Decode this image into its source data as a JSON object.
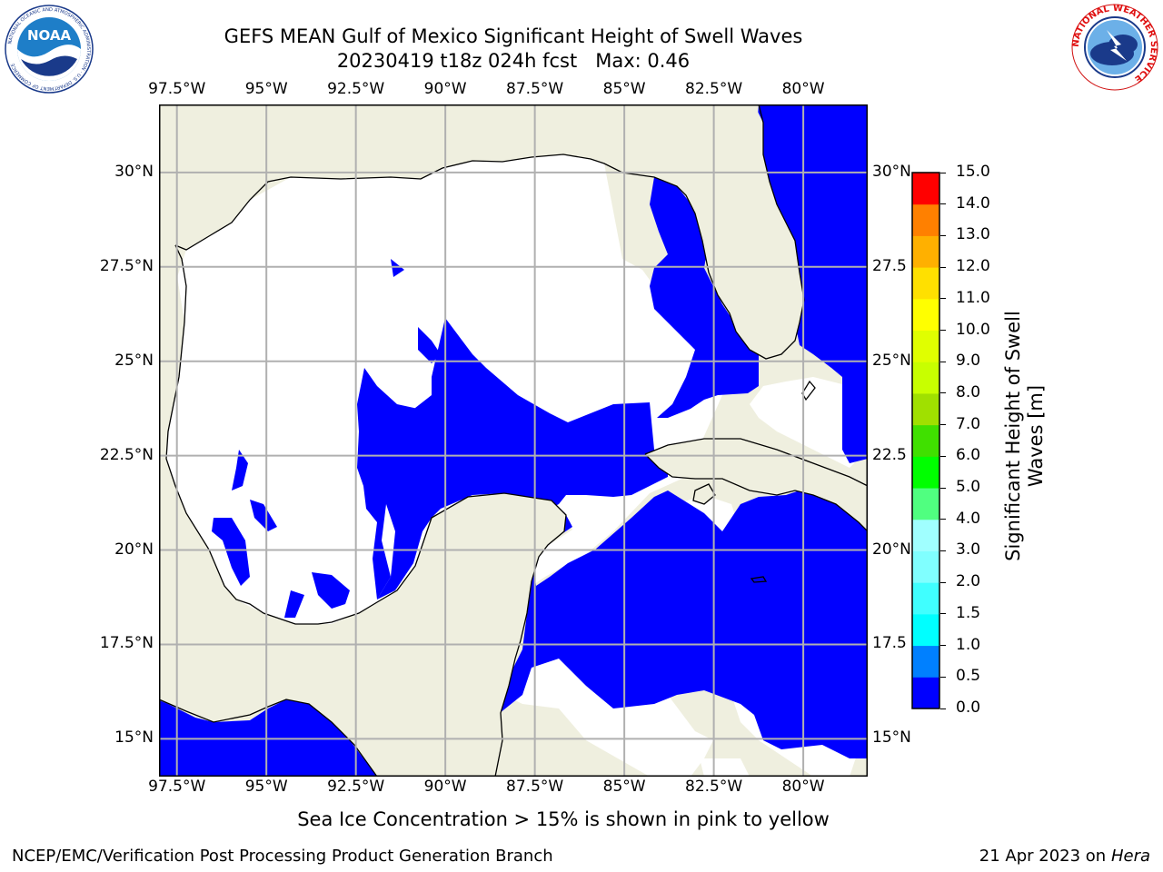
{
  "header": {
    "title_line1": "GEFS MEAN Gulf of Mexico Significant Height of Swell Waves",
    "title_line2": "20230419 t18z 024h fcst   Max: 0.46"
  },
  "logos": {
    "left": {
      "name": "NOAA",
      "text": "NOAA",
      "ring_text": "NATIONAL OCEANIC AND ATMOSPHERIC ADMINISTRATION · U.S. DEPARTMENT OF COMMERCE"
    },
    "right": {
      "name": "National Weather Service",
      "ring_text": "NATIONAL WEATHER SERVICE"
    }
  },
  "map": {
    "lon_ticks": [
      "97.5°W",
      "95°W",
      "92.5°W",
      "90°W",
      "87.5°W",
      "85°W",
      "82.5°W",
      "80°W"
    ],
    "lon_values": [
      -97.5,
      -95,
      -92.5,
      -90,
      -87.5,
      -85,
      -82.5,
      -80
    ],
    "lat_ticks": [
      "30°N",
      "27.5°N",
      "25°N",
      "22.5°N",
      "20°N",
      "17.5°N",
      "15°N"
    ],
    "lat_ticks_right": [
      "30°N",
      "27.5",
      "25°N",
      "22.5",
      "20°N",
      "17.5",
      "15°N"
    ],
    "lat_values": [
      30,
      27.5,
      25,
      22.5,
      20,
      17.5,
      15
    ],
    "extent": {
      "lon_min": -98,
      "lon_max": -78.2,
      "lat_min": 14.0,
      "lat_max": 31.8
    },
    "colors": {
      "land": "#efefdf",
      "swell_low": "#0000ff",
      "no_swell": "#ffffff",
      "grid": "#b0b0b0",
      "coast": "#000000"
    }
  },
  "colorbar": {
    "label_line1": "Significant Height of Swell",
    "label_line2": "Waves [m]",
    "ticks": [
      "0.0",
      "0.5",
      "1.0",
      "1.5",
      "2.0",
      "3.0",
      "4.0",
      "5.0",
      "6.0",
      "7.0",
      "8.0",
      "9.0",
      "10.0",
      "11.0",
      "12.0",
      "13.0",
      "14.0",
      "15.0"
    ],
    "colors": [
      "#0000ff",
      "#0080ff",
      "#00ffff",
      "#40ffff",
      "#80ffff",
      "#a0ffff",
      "#50ff80",
      "#00ff00",
      "#40e000",
      "#a0e000",
      "#c8ff00",
      "#e0ff00",
      "#ffff00",
      "#ffe000",
      "#ffb000",
      "#ff8000",
      "#ff4000",
      "#ff0000"
    ]
  },
  "notes": {
    "ice": "Sea Ice Concentration > 15% is shown in pink to yellow"
  },
  "footer": {
    "left": "NCEP/EMC/Verification Post Processing Product Generation Branch",
    "right_prefix": "21 Apr 2023 on ",
    "right_host": "Hera"
  }
}
